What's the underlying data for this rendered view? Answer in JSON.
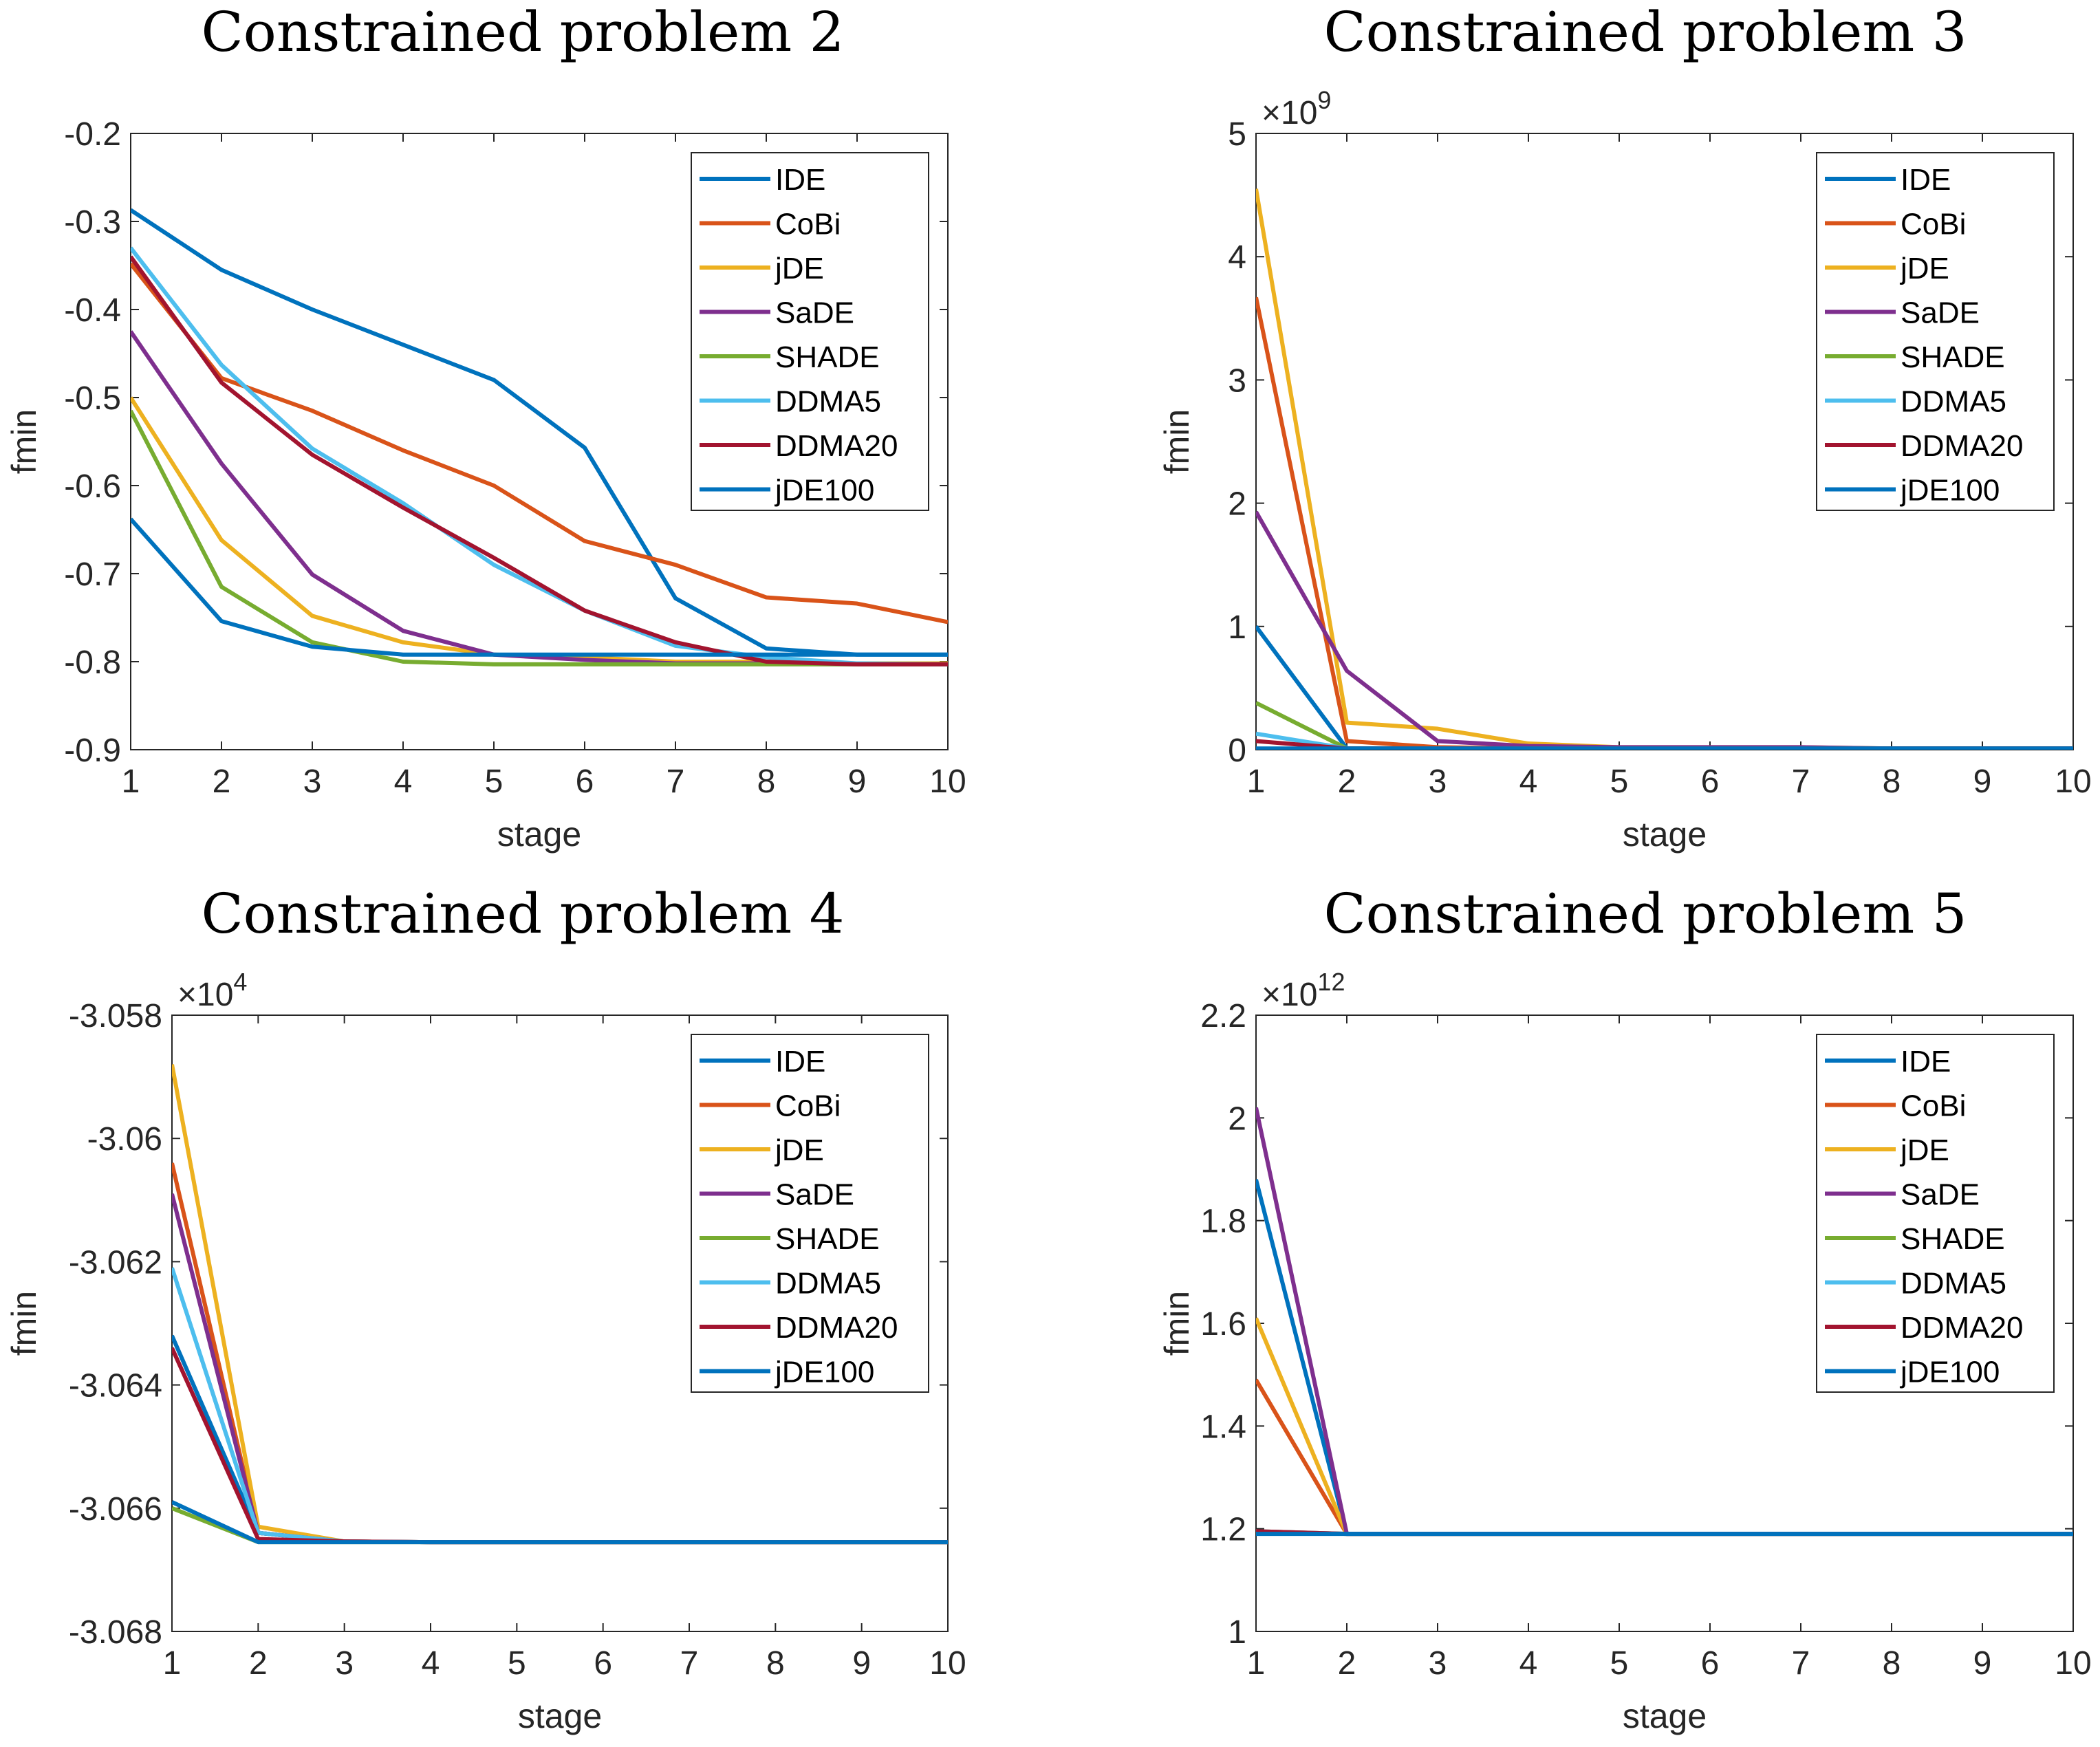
{
  "colors": {
    "IDE": "#0072BD",
    "CoBi": "#D95319",
    "jDE": "#EDB120",
    "SaDE": "#7E2F8E",
    "SHADE": "#77AC30",
    "DDMA5": "#4DBEEE",
    "DDMA20": "#A2142F",
    "jDE100": "#0072BD"
  },
  "chart_data": [
    {
      "type": "line",
      "title": "Constrained problem 2",
      "xlabel": "stage",
      "ylabel": "fmin",
      "exponent": "",
      "x": [
        1,
        2,
        3,
        4,
        5,
        6,
        7,
        8,
        9,
        10
      ],
      "xlim": [
        1,
        10
      ],
      "ylim": [
        -0.9,
        -0.2
      ],
      "yticks": [
        -0.2,
        -0.3,
        -0.4,
        -0.5,
        -0.6,
        -0.7,
        -0.8,
        -0.9
      ],
      "ytick_labels": [
        "-0.2",
        "-0.3",
        "-0.4",
        "-0.5",
        "-0.6",
        "-0.7",
        "-0.8",
        "-0.9"
      ],
      "legend_position": "top-right",
      "grid": false,
      "series": [
        {
          "name": "IDE",
          "values": [
            -0.287,
            -0.355,
            -0.4,
            -0.44,
            -0.48,
            -0.557,
            -0.728,
            -0.785,
            -0.792,
            -0.792
          ]
        },
        {
          "name": "CoBi",
          "values": [
            -0.348,
            -0.478,
            -0.515,
            -0.56,
            -0.6,
            -0.663,
            -0.69,
            -0.727,
            -0.734,
            -0.755
          ]
        },
        {
          "name": "jDE",
          "values": [
            -0.5,
            -0.662,
            -0.748,
            -0.778,
            -0.792,
            -0.795,
            -0.8,
            -0.8,
            -0.802,
            -0.802
          ]
        },
        {
          "name": "SaDE",
          "values": [
            -0.425,
            -0.575,
            -0.701,
            -0.765,
            -0.792,
            -0.798,
            -0.802,
            -0.802,
            -0.803,
            -0.803
          ]
        },
        {
          "name": "SHADE",
          "values": [
            -0.515,
            -0.715,
            -0.778,
            -0.8,
            -0.803,
            -0.803,
            -0.803,
            -0.803,
            -0.803,
            -0.803
          ]
        },
        {
          "name": "DDMA5",
          "values": [
            -0.33,
            -0.463,
            -0.558,
            -0.62,
            -0.69,
            -0.742,
            -0.782,
            -0.795,
            -0.802,
            -0.803
          ]
        },
        {
          "name": "DDMA20",
          "values": [
            -0.34,
            -0.483,
            -0.565,
            -0.625,
            -0.682,
            -0.742,
            -0.778,
            -0.8,
            -0.803,
            -0.803
          ]
        },
        {
          "name": "jDE100",
          "values": [
            -0.638,
            -0.754,
            -0.783,
            -0.792,
            -0.792,
            -0.792,
            -0.792,
            -0.792,
            -0.792,
            -0.792
          ]
        }
      ]
    },
    {
      "type": "line",
      "title": "Constrained problem 3",
      "xlabel": "stage",
      "ylabel": "fmin",
      "exponent": "9",
      "x": [
        1,
        2,
        3,
        4,
        5,
        6,
        7,
        8,
        9,
        10
      ],
      "xlim": [
        1,
        10
      ],
      "ylim": [
        0,
        5
      ],
      "yticks": [
        0,
        1,
        2,
        3,
        4,
        5
      ],
      "ytick_labels": [
        "0",
        "1",
        "2",
        "3",
        "4",
        "5"
      ],
      "legend_position": "top-right",
      "grid": false,
      "series": [
        {
          "name": "IDE",
          "values": [
            1.0,
            0.01,
            0.01,
            0.01,
            0.01,
            0.01,
            0.01,
            0.01,
            0.01,
            0.01
          ]
        },
        {
          "name": "CoBi",
          "values": [
            3.67,
            0.07,
            0.02,
            0.01,
            0.01,
            0.01,
            0.01,
            0.01,
            0.01,
            0.01
          ]
        },
        {
          "name": "jDE",
          "values": [
            4.55,
            0.22,
            0.17,
            0.05,
            0.02,
            0.02,
            0.02,
            0.01,
            0.01,
            0.01
          ]
        },
        {
          "name": "SaDE",
          "values": [
            1.93,
            0.64,
            0.07,
            0.03,
            0.02,
            0.02,
            0.02,
            0.01,
            0.01,
            0.01
          ]
        },
        {
          "name": "SHADE",
          "values": [
            0.38,
            0.01,
            0.01,
            0.01,
            0.01,
            0.01,
            0.01,
            0.01,
            0.01,
            0.01
          ]
        },
        {
          "name": "DDMA5",
          "values": [
            0.13,
            0.01,
            0.01,
            0.01,
            0.01,
            0.01,
            0.01,
            0.01,
            0.01,
            0.01
          ]
        },
        {
          "name": "DDMA20",
          "values": [
            0.07,
            0.01,
            0.01,
            0.01,
            0.01,
            0.01,
            0.01,
            0.01,
            0.01,
            0.01
          ]
        },
        {
          "name": "jDE100",
          "values": [
            0.01,
            0.01,
            0.01,
            0.01,
            0.01,
            0.01,
            0.01,
            0.01,
            0.01,
            0.01
          ]
        }
      ]
    },
    {
      "type": "line",
      "title": "Constrained problem 4",
      "xlabel": "stage",
      "ylabel": "fmin",
      "exponent": "4",
      "x": [
        1,
        2,
        3,
        4,
        5,
        6,
        7,
        8,
        9,
        10
      ],
      "xlim": [
        1,
        10
      ],
      "ylim": [
        -3.068,
        -3.058
      ],
      "yticks": [
        -3.058,
        -3.06,
        -3.062,
        -3.064,
        -3.066,
        -3.068
      ],
      "ytick_labels": [
        "-3.058",
        "-3.06",
        "-3.062",
        "-3.064",
        "-3.066",
        "-3.068"
      ],
      "legend_position": "top-right",
      "grid": false,
      "series": [
        {
          "name": "IDE",
          "values": [
            -3.0632,
            -3.0664,
            -3.06654,
            -3.06655,
            -3.06655,
            -3.06655,
            -3.06655,
            -3.06655,
            -3.06655,
            -3.06655
          ]
        },
        {
          "name": "CoBi",
          "values": [
            -3.0604,
            -3.0664,
            -3.06654,
            -3.06655,
            -3.06655,
            -3.06655,
            -3.06655,
            -3.06655,
            -3.06655,
            -3.06655
          ]
        },
        {
          "name": "jDE",
          "values": [
            -3.0588,
            -3.0663,
            -3.06654,
            -3.06655,
            -3.06655,
            -3.06655,
            -3.06655,
            -3.06655,
            -3.06655,
            -3.06655
          ]
        },
        {
          "name": "SaDE",
          "values": [
            -3.0609,
            -3.0664,
            -3.06654,
            -3.06655,
            -3.06655,
            -3.06655,
            -3.06655,
            -3.06655,
            -3.06655,
            -3.06655
          ]
        },
        {
          "name": "SHADE",
          "values": [
            -3.066,
            -3.06655,
            -3.06655,
            -3.06655,
            -3.06655,
            -3.06655,
            -3.06655,
            -3.06655,
            -3.06655,
            -3.06655
          ]
        },
        {
          "name": "DDMA5",
          "values": [
            -3.0621,
            -3.0664,
            -3.06654,
            -3.06655,
            -3.06655,
            -3.06655,
            -3.06655,
            -3.06655,
            -3.06655,
            -3.06655
          ]
        },
        {
          "name": "DDMA20",
          "values": [
            -3.0634,
            -3.0665,
            -3.06654,
            -3.06655,
            -3.06655,
            -3.06655,
            -3.06655,
            -3.06655,
            -3.06655,
            -3.06655
          ]
        },
        {
          "name": "jDE100",
          "values": [
            -3.0659,
            -3.06655,
            -3.06655,
            -3.06655,
            -3.06655,
            -3.06655,
            -3.06655,
            -3.06655,
            -3.06655,
            -3.06655
          ]
        }
      ]
    },
    {
      "type": "line",
      "title": "Constrained problem 5",
      "xlabel": "stage",
      "ylabel": "fmin",
      "exponent": "12",
      "x": [
        1,
        2,
        3,
        4,
        5,
        6,
        7,
        8,
        9,
        10
      ],
      "xlim": [
        1,
        10
      ],
      "ylim": [
        1,
        2.2
      ],
      "yticks": [
        1,
        1.2,
        1.4,
        1.6,
        1.8,
        2,
        2.2
      ],
      "ytick_labels": [
        "1",
        "1.2",
        "1.4",
        "1.6",
        "1.8",
        "2",
        "2.2"
      ],
      "legend_position": "top-right",
      "grid": false,
      "series": [
        {
          "name": "IDE",
          "values": [
            1.88,
            1.19,
            1.19,
            1.19,
            1.19,
            1.19,
            1.19,
            1.19,
            1.19,
            1.19
          ]
        },
        {
          "name": "CoBi",
          "values": [
            1.49,
            1.19,
            1.19,
            1.19,
            1.19,
            1.19,
            1.19,
            1.19,
            1.19,
            1.19
          ]
        },
        {
          "name": "jDE",
          "values": [
            1.61,
            1.19,
            1.19,
            1.19,
            1.19,
            1.19,
            1.19,
            1.19,
            1.19,
            1.19
          ]
        },
        {
          "name": "SaDE",
          "values": [
            2.02,
            1.19,
            1.19,
            1.19,
            1.19,
            1.19,
            1.19,
            1.19,
            1.19,
            1.19
          ]
        },
        {
          "name": "SHADE",
          "values": [
            1.195,
            1.19,
            1.19,
            1.19,
            1.19,
            1.19,
            1.19,
            1.19,
            1.19,
            1.19
          ]
        },
        {
          "name": "DDMA5",
          "values": [
            1.195,
            1.19,
            1.19,
            1.19,
            1.19,
            1.19,
            1.19,
            1.19,
            1.19,
            1.19
          ]
        },
        {
          "name": "DDMA20",
          "values": [
            1.195,
            1.19,
            1.19,
            1.19,
            1.19,
            1.19,
            1.19,
            1.19,
            1.19,
            1.19
          ]
        },
        {
          "name": "jDE100",
          "values": [
            1.19,
            1.19,
            1.19,
            1.19,
            1.19,
            1.19,
            1.19,
            1.19,
            1.19,
            1.19
          ]
        }
      ]
    }
  ]
}
